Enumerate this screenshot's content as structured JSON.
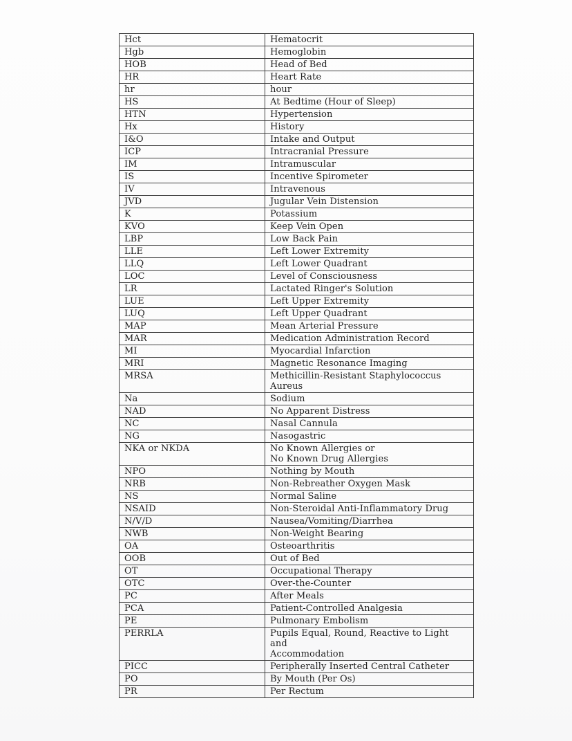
{
  "document": {
    "kind": "scanned-abbreviation-glossary",
    "text_color": "#1e1e1e",
    "border_color": "#3d3d3d",
    "page_background": "#fcfcfc",
    "table": {
      "columns": [
        "abbreviation",
        "meaning"
      ],
      "rows": [
        {
          "abbr": "Hct",
          "meaning": "Hematocrit"
        },
        {
          "abbr": "Hgb",
          "meaning": "Hemoglobin"
        },
        {
          "abbr": "HOB",
          "meaning": "Head of Bed"
        },
        {
          "abbr": "HR",
          "meaning": "Heart Rate"
        },
        {
          "abbr": "hr",
          "meaning": "hour"
        },
        {
          "abbr": "HS",
          "meaning": "At Bedtime (Hour of Sleep)"
        },
        {
          "abbr": "HTN",
          "meaning": "Hypertension"
        },
        {
          "abbr": "Hx",
          "meaning": "History"
        },
        {
          "abbr": "I&O",
          "meaning": "Intake and Output"
        },
        {
          "abbr": "ICP",
          "meaning": "Intracranial Pressure"
        },
        {
          "abbr": "IM",
          "meaning": "Intramuscular"
        },
        {
          "abbr": "IS",
          "meaning": "Incentive Spirometer"
        },
        {
          "abbr": "IV",
          "meaning": "Intravenous"
        },
        {
          "abbr": "JVD",
          "meaning": "Jugular Vein Distension"
        },
        {
          "abbr": "K",
          "meaning": "Potassium"
        },
        {
          "abbr": "KVO",
          "meaning": "Keep Vein Open"
        },
        {
          "abbr": "LBP",
          "meaning": "Low Back Pain"
        },
        {
          "abbr": "LLE",
          "meaning": "Left Lower Extremity"
        },
        {
          "abbr": "LLQ",
          "meaning": "Left Lower Quadrant"
        },
        {
          "abbr": "LOC",
          "meaning": "Level of Consciousness"
        },
        {
          "abbr": "LR",
          "meaning": "Lactated Ringer's Solution"
        },
        {
          "abbr": "LUE",
          "meaning": "Left Upper Extremity"
        },
        {
          "abbr": "LUQ",
          "meaning": "Left Upper Quadrant"
        },
        {
          "abbr": "MAP",
          "meaning": "Mean Arterial Pressure"
        },
        {
          "abbr": "MAR",
          "meaning": "Medication Administration Record"
        },
        {
          "abbr": "MI",
          "meaning": "Myocardial Infarction"
        },
        {
          "abbr": "MRI",
          "meaning": "Magnetic Resonance Imaging"
        },
        {
          "abbr": "MRSA",
          "meaning": "Methicillin-Resistant Staphylococcus\nAureus"
        },
        {
          "abbr": "Na",
          "meaning": "Sodium"
        },
        {
          "abbr": "NAD",
          "meaning": "No Apparent Distress"
        },
        {
          "abbr": "NC",
          "meaning": "Nasal Cannula"
        },
        {
          "abbr": "NG",
          "meaning": "Nasogastric"
        },
        {
          "abbr": "NKA or NKDA",
          "meaning": "No Known Allergies or\nNo Known Drug Allergies"
        },
        {
          "abbr": "NPO",
          "meaning": "Nothing by Mouth"
        },
        {
          "abbr": "NRB",
          "meaning": "Non-Rebreather Oxygen Mask"
        },
        {
          "abbr": "NS",
          "meaning": "Normal Saline"
        },
        {
          "abbr": "NSAID",
          "meaning": "Non-Steroidal Anti-Inflammatory Drug"
        },
        {
          "abbr": "N/V/D",
          "meaning": "Nausea/Vomiting/Diarrhea"
        },
        {
          "abbr": "NWB",
          "meaning": "Non-Weight Bearing"
        },
        {
          "abbr": "OA",
          "meaning": "Osteoarthritis"
        },
        {
          "abbr": "OOB",
          "meaning": "Out of Bed"
        },
        {
          "abbr": "OT",
          "meaning": "Occupational Therapy"
        },
        {
          "abbr": "OTC",
          "meaning": "Over-the-Counter"
        },
        {
          "abbr": "PC",
          "meaning": "After Meals"
        },
        {
          "abbr": "PCA",
          "meaning": "Patient-Controlled Analgesia"
        },
        {
          "abbr": "PE",
          "meaning": "Pulmonary Embolism"
        },
        {
          "abbr": "PERRLA",
          "meaning": "Pupils Equal, Round, Reactive to Light and\nAccommodation"
        },
        {
          "abbr": "PICC",
          "meaning": "Peripherally Inserted Central Catheter"
        },
        {
          "abbr": "PO",
          "meaning": "By Mouth (Per Os)"
        },
        {
          "abbr": "PR",
          "meaning": "Per Rectum"
        }
      ]
    }
  }
}
